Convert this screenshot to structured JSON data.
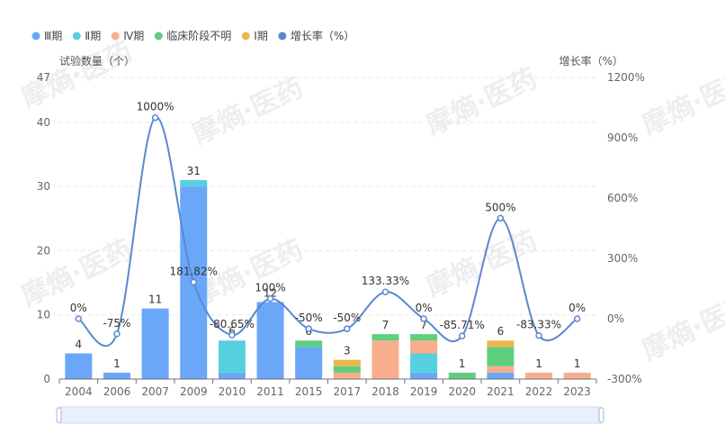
{
  "colors": {
    "phase3": "#6aa7f8",
    "phase2": "#56cfdf",
    "phase4": "#f8ad8d",
    "unknown": "#5fcf7e",
    "phase1": "#ebb74e",
    "growth": "#5b88cf"
  },
  "watermark": "摩熵·医药",
  "chart_data": {
    "type": "bar",
    "stacked": true,
    "left_axis_title": "试验数量（个）",
    "right_axis_title": "增长率（%）",
    "categories": [
      "2004",
      "2006",
      "2007",
      "2009",
      "2010",
      "2011",
      "2015",
      "2017",
      "2018",
      "2019",
      "2020",
      "2021",
      "2022",
      "2023"
    ],
    "ylim": [
      0,
      47
    ],
    "y_ticks": [
      0,
      10,
      20,
      30,
      40,
      47
    ],
    "y2lim": [
      -300,
      1200
    ],
    "y2_ticks": [
      "-300%",
      "0%",
      "300%",
      "600%",
      "900%",
      "1200%"
    ],
    "y2_tick_values": [
      -300,
      0,
      300,
      600,
      900,
      1200
    ],
    "series": [
      {
        "name": "Ⅲ期",
        "color_key": "phase3",
        "values": [
          4,
          1,
          11,
          30,
          1,
          12,
          5,
          0,
          0,
          1,
          0,
          1,
          0,
          0
        ]
      },
      {
        "name": "Ⅱ期",
        "color_key": "phase2",
        "values": [
          0,
          0,
          0,
          1,
          5,
          0,
          0,
          0,
          0,
          3,
          0,
          0,
          0,
          0
        ]
      },
      {
        "name": "Ⅳ期",
        "color_key": "phase4",
        "values": [
          0,
          0,
          0,
          0,
          0,
          0,
          0,
          1,
          6,
          2,
          0,
          1,
          1,
          1
        ]
      },
      {
        "name": "临床阶段不明",
        "color_key": "unknown",
        "values": [
          0,
          0,
          0,
          0,
          0,
          0,
          1,
          1,
          1,
          1,
          1,
          3,
          0,
          0
        ]
      },
      {
        "name": "Ⅰ期",
        "color_key": "phase1",
        "values": [
          0,
          0,
          0,
          0,
          0,
          0,
          0,
          1,
          0,
          0,
          0,
          1,
          0,
          0
        ]
      }
    ],
    "totals": [
      4,
      1,
      11,
      31,
      6,
      12,
      6,
      3,
      7,
      7,
      1,
      6,
      1,
      1
    ],
    "totals_labels": [
      "4",
      "1",
      "11",
      "31",
      "6",
      "12",
      "6",
      "3",
      "7",
      "7",
      "1",
      "6",
      "1",
      "1"
    ],
    "growth_series": {
      "name": "增长率（%）",
      "color_key": "growth",
      "values": [
        0,
        -75,
        1000,
        181.82,
        -80.65,
        100,
        -50,
        -50,
        133.33,
        0,
        -85.71,
        500,
        -83.33,
        0
      ],
      "labels": [
        "0%",
        "-75%",
        "1000%",
        "181.82%",
        "-80.65%",
        "100%",
        "-50%",
        "-50%",
        "133.33%",
        "0%",
        "-85.71%",
        "500%",
        "-83.33%",
        "0%"
      ]
    },
    "legend_position": "top-left"
  }
}
